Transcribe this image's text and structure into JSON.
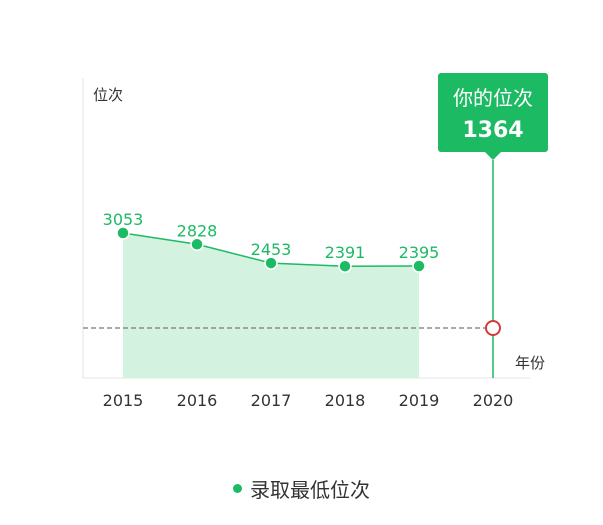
{
  "chart_data": {
    "type": "line",
    "title": "",
    "ylabel": "位次",
    "xlabel": "年份",
    "categories": [
      "2015",
      "2016",
      "2017",
      "2018",
      "2019",
      "2020"
    ],
    "series": [
      {
        "name": "录取最低位次",
        "values": [
          3053,
          2828,
          2453,
          2391,
          2395,
          null
        ]
      }
    ],
    "reference": {
      "category": "2020",
      "label": "你的位次",
      "value": 1364
    },
    "yaxis_inverted": true,
    "grid": false,
    "legend_position": "bottom"
  },
  "colors": {
    "series": "#1dba64",
    "area": "#d3f3e0",
    "marker_highlight": "#1dba64",
    "reference_point": "#d33a3a",
    "axis": "#e5e5e5",
    "text": "#333333",
    "dashed_line": "#777777"
  }
}
